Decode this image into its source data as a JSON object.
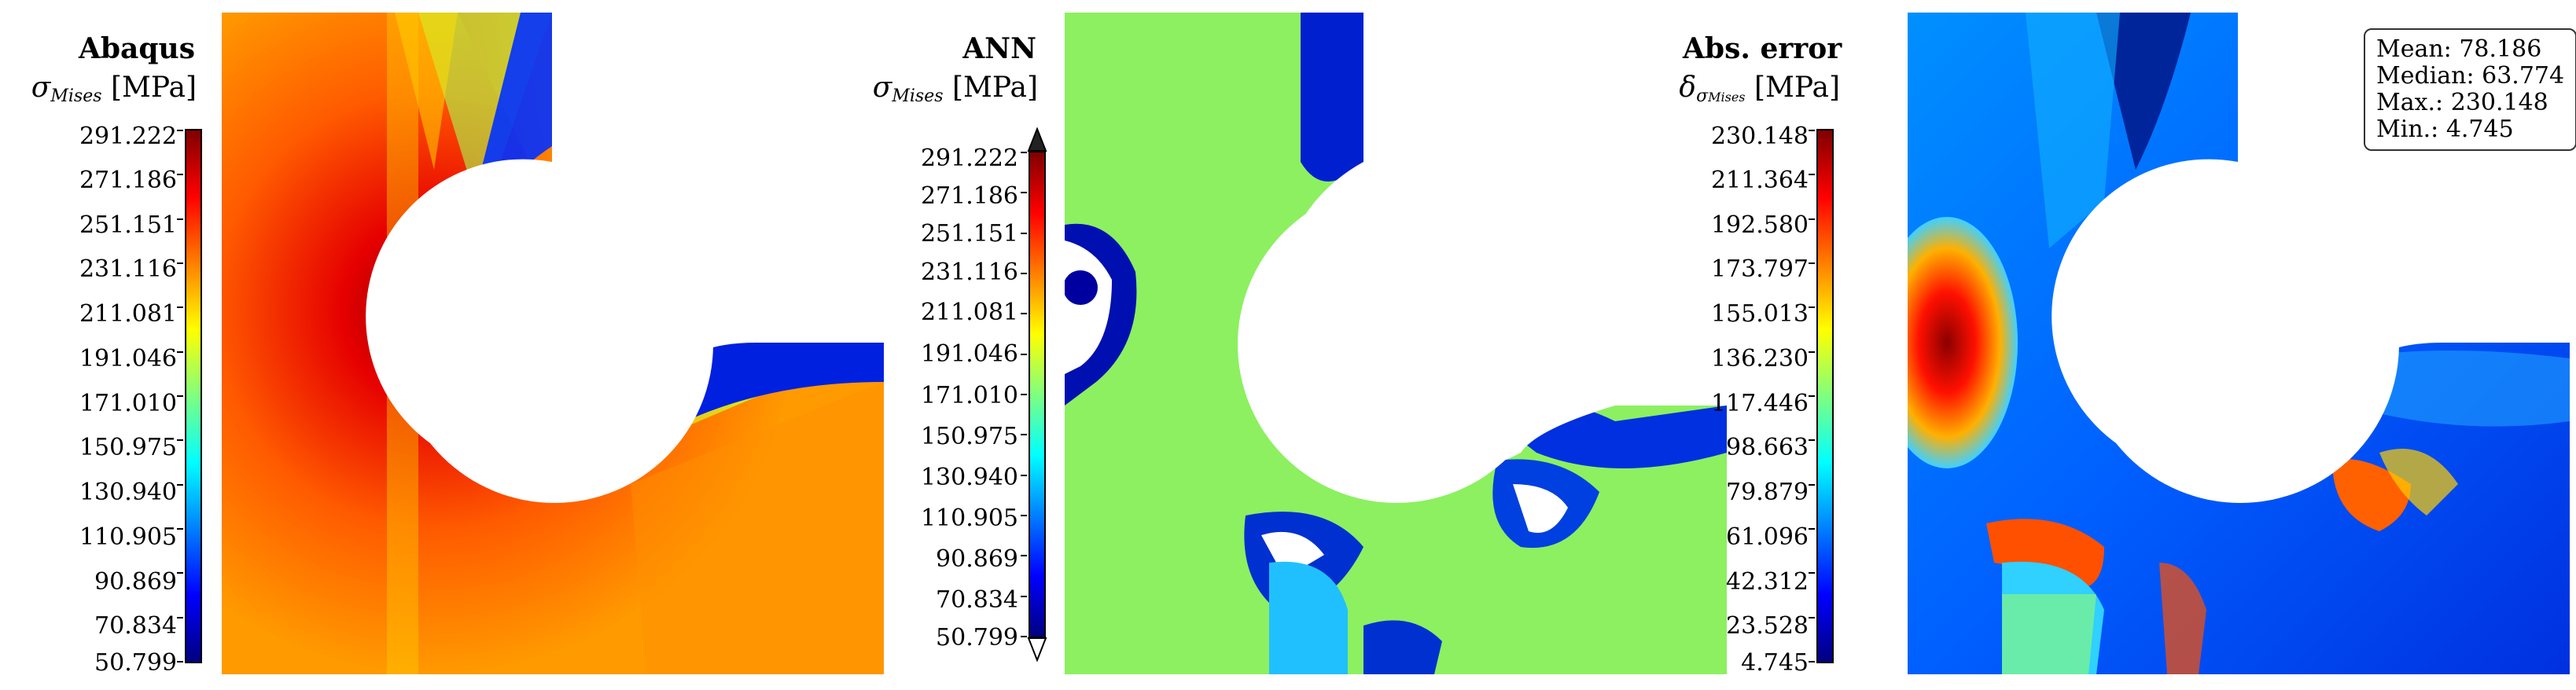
{
  "colormap": [
    "#00007f",
    "#0000ff",
    "#007fff",
    "#00ffff",
    "#7fff7f",
    "#ffff00",
    "#ff7f00",
    "#ff0000",
    "#7f0000"
  ],
  "panels": [
    {
      "title": "Abaqus",
      "quantity_symbol": "σ",
      "quantity_sub": "Mises",
      "quantity_unit": "[MPa]",
      "ticks": [
        "291.222",
        "271.186",
        "251.151",
        "231.116",
        "211.081",
        "191.046",
        "171.010",
        "150.975",
        "130.940",
        "110.905",
        "90.869",
        "70.834",
        "50.799"
      ]
    },
    {
      "title": "ANN",
      "quantity_symbol": "σ",
      "quantity_sub": "Mises",
      "quantity_unit": "[MPa]",
      "ticks": [
        "291.222",
        "271.186",
        "251.151",
        "231.116",
        "211.081",
        "191.046",
        "171.010",
        "150.975",
        "130.940",
        "110.905",
        "90.869",
        "70.834",
        "50.799"
      ]
    },
    {
      "title": "Abs. error",
      "quantity_symbol": "δ",
      "quantity_sub": "σ",
      "quantity_sub2": "Mises",
      "quantity_unit": "[MPa]",
      "ticks": [
        "230.148",
        "211.364",
        "192.580",
        "173.797",
        "155.013",
        "136.230",
        "117.446",
        "98.663",
        "79.879",
        "61.096",
        "42.312",
        "23.528",
        "4.745"
      ]
    }
  ],
  "stats": {
    "mean": "Mean: 78.186",
    "median": "Median: 63.774",
    "max": "Max.: 230.148",
    "min": "Min.: 4.745"
  },
  "chart_data": [
    {
      "type": "heatmap",
      "title": "Abaqus",
      "colorbar_label": "σMises [MPa]",
      "colorbar_range": [
        50.799,
        291.222
      ],
      "colormap": "jet",
      "colorbar_ticks": [
        291.222,
        271.186,
        251.151,
        231.116,
        211.081,
        191.046,
        171.01,
        150.975,
        130.94,
        110.905,
        90.869,
        70.834,
        50.799
      ]
    },
    {
      "type": "heatmap",
      "title": "ANN",
      "colorbar_label": "σMises [MPa]",
      "colorbar_range": [
        50.799,
        291.222
      ],
      "colormap": "jet",
      "colorbar_extend": "both",
      "colorbar_ticks": [
        291.222,
        271.186,
        251.151,
        231.116,
        211.081,
        191.046,
        171.01,
        150.975,
        130.94,
        110.905,
        90.869,
        70.834,
        50.799
      ]
    },
    {
      "type": "heatmap",
      "title": "Abs. error",
      "colorbar_label": "δσMises [MPa]",
      "colorbar_range": [
        4.745,
        230.148
      ],
      "colormap": "jet",
      "colorbar_ticks": [
        230.148,
        211.364,
        192.58,
        173.797,
        155.013,
        136.23,
        117.446,
        98.663,
        79.879,
        61.096,
        42.312,
        23.528,
        4.745
      ],
      "statistics": {
        "mean": 78.186,
        "median": 63.774,
        "max": 230.148,
        "min": 4.745
      }
    }
  ]
}
